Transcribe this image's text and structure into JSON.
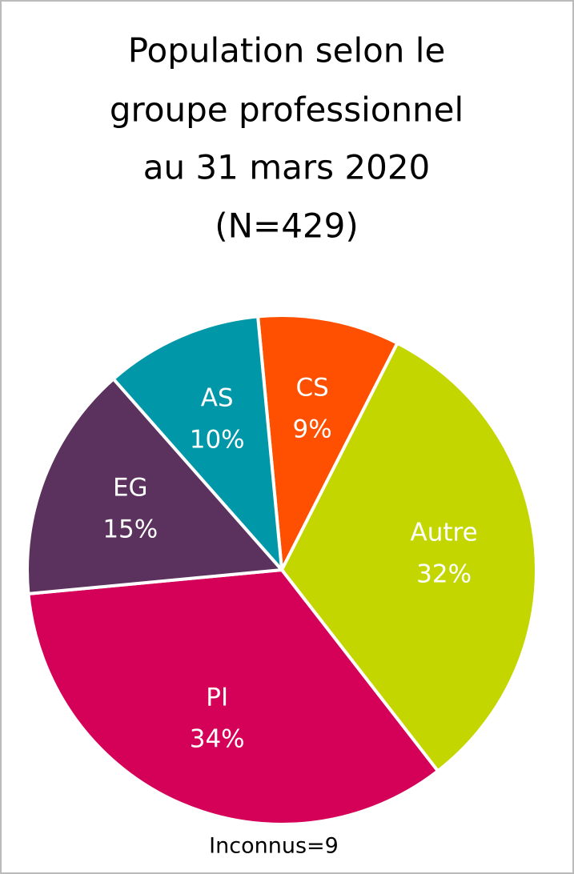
{
  "chart_data": {
    "type": "pie",
    "title": [
      "Population selon le",
      "groupe professionnel",
      "au 31 mars 2020",
      "(N=429)"
    ],
    "categories": [
      "CS",
      "Autre",
      "PI",
      "EG",
      "AS"
    ],
    "values": [
      9,
      32,
      34,
      15,
      10
    ],
    "value_labels": [
      "9%",
      "32%",
      "34%",
      "15%",
      "10%"
    ],
    "colors": [
      "#fe5000",
      "#c4d600",
      "#d50057",
      "#5b315d",
      "#0097a8"
    ],
    "note": "Inconnus=9"
  }
}
